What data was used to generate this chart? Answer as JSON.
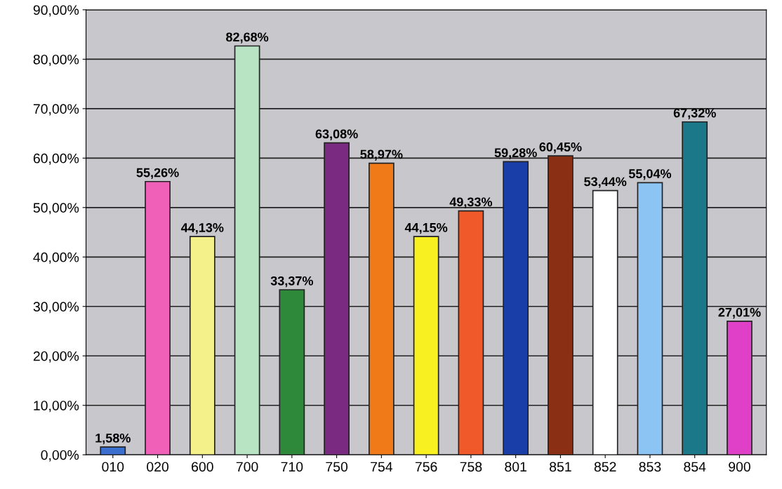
{
  "chart_data": {
    "type": "bar",
    "categories": [
      "010",
      "020",
      "600",
      "700",
      "710",
      "750",
      "754",
      "756",
      "758",
      "801",
      "851",
      "852",
      "853",
      "854",
      "900"
    ],
    "values": [
      1.58,
      55.26,
      44.13,
      82.68,
      33.37,
      63.08,
      58.97,
      44.15,
      49.33,
      59.28,
      60.45,
      53.44,
      55.04,
      67.32,
      27.01
    ],
    "value_labels": [
      "1,58%",
      "55,26%",
      "44,13%",
      "82,68%",
      "33,37%",
      "63,08%",
      "58,97%",
      "44,15%",
      "49,33%",
      "59,28%",
      "60,45%",
      "53,44%",
      "55,04%",
      "67,32%",
      "27,01%"
    ],
    "colors": [
      "#3a6fd0",
      "#f060b8",
      "#f4f08a",
      "#b8e4c4",
      "#2e8a3a",
      "#7a2a80",
      "#f07a18",
      "#f8f020",
      "#f05a2a",
      "#1a3ea8",
      "#8a2e14",
      "#ffffff",
      "#8cc4f4",
      "#1a7888",
      "#e040c8"
    ],
    "ylim": [
      0,
      90
    ],
    "yticks": [
      {
        "value": 0,
        "label": "0,00%"
      },
      {
        "value": 10,
        "label": "10,00%"
      },
      {
        "value": 20,
        "label": "20,00%"
      },
      {
        "value": 30,
        "label": "30,00%"
      },
      {
        "value": 40,
        "label": "40,00%"
      },
      {
        "value": 50,
        "label": "50,00%"
      },
      {
        "value": 60,
        "label": "60,00%"
      },
      {
        "value": 70,
        "label": "70,00%"
      },
      {
        "value": 80,
        "label": "80,00%"
      },
      {
        "value": 90,
        "label": "90,00%"
      }
    ],
    "grid": "y",
    "legend": false
  }
}
